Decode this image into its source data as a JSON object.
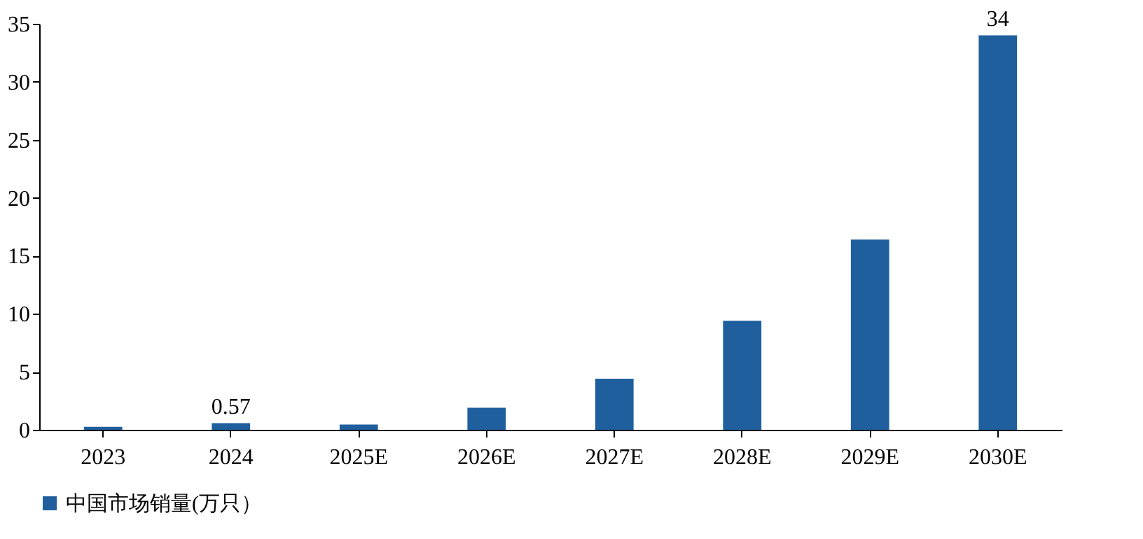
{
  "chart_data": {
    "type": "bar",
    "categories": [
      "2023",
      "2024",
      "2025E",
      "2026E",
      "2027E",
      "2028E",
      "2029E",
      "2030E"
    ],
    "series": [
      {
        "name": "中国市场销量(万只）",
        "color": "#1f5f9e",
        "values": [
          0.25,
          0.57,
          0.45,
          1.9,
          4.4,
          9.4,
          16.4,
          34
        ],
        "value_labels": [
          null,
          "0.57",
          null,
          null,
          null,
          null,
          null,
          "34"
        ]
      }
    ],
    "ylim": [
      0,
      35
    ],
    "yticks": [
      0,
      5,
      10,
      15,
      20,
      25,
      30,
      35
    ],
    "grid": false,
    "legend": "bottom"
  }
}
